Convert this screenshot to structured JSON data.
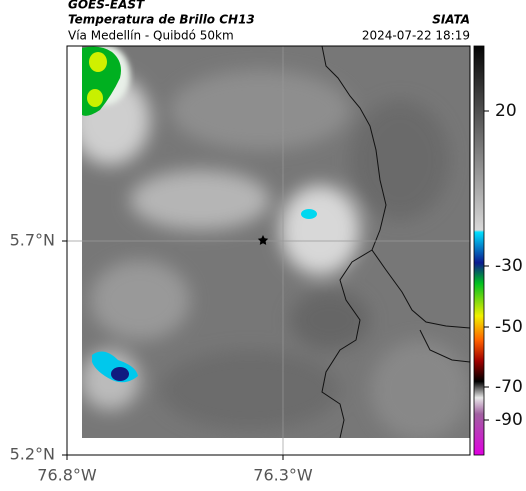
{
  "header": {
    "source": "GOES-EAST",
    "product": "Temperatura de Brillo CH13",
    "region": "Vía Medellín - Quibdó 50km",
    "agency": "SIATA",
    "timestamp": "2024-07-22 18:19"
  },
  "map": {
    "lat_labels": [
      "5.7°N",
      "5.2°N"
    ],
    "lon_labels": [
      "76.8°W",
      "76.3°W"
    ]
  },
  "colorbar": {
    "ticks": [
      20,
      -30,
      -50,
      -70,
      -90
    ]
  }
}
